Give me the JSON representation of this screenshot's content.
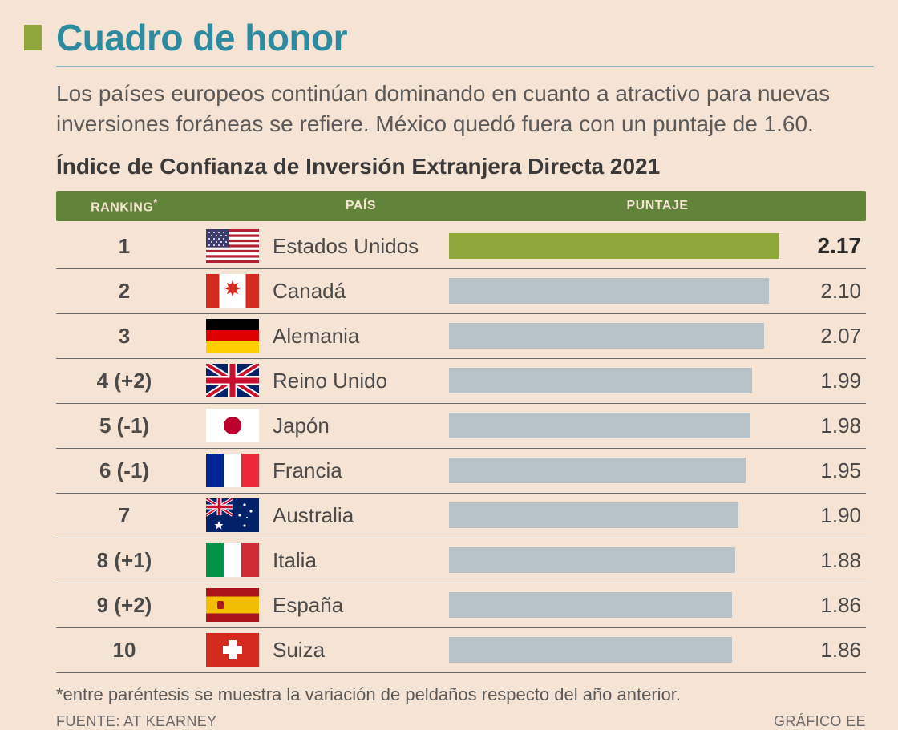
{
  "accent_square_color": "#8fa63a",
  "title": "Cuadro de honor",
  "title_color": "#2e8a9e",
  "underline_color": "#8cb6c0",
  "description": "Los países europeos continúan dominando en cuanto a atractivo para nuevas inversiones foráneas se refiere. México quedó fuera con un puntaje de 1.60.",
  "subtitle": "Índice de Confianza de Inversión Extranjera Directa 2021",
  "header": {
    "bg": "#62833a",
    "fg": "#f5e3d3",
    "ranking": "RANKING",
    "asterisk": "*",
    "pais": "PAÍS",
    "puntaje": "PUNTAJE"
  },
  "bar": {
    "default_color": "#b7c3c8",
    "highlight_color": "#8fa63a",
    "max_value": 2.17
  },
  "row_border_color": "#6a6a6a",
  "rows": [
    {
      "rank": "1",
      "country": "Estados Unidos",
      "score": "2.17",
      "score_bold": true,
      "flag": "us",
      "highlight": true
    },
    {
      "rank": "2",
      "country": "Canadá",
      "score": "2.10",
      "score_bold": false,
      "flag": "ca",
      "highlight": false
    },
    {
      "rank": "3",
      "country": "Alemania",
      "score": "2.07",
      "score_bold": false,
      "flag": "de",
      "highlight": false
    },
    {
      "rank": "4 (+2)",
      "country": "Reino Unido",
      "score": "1.99",
      "score_bold": false,
      "flag": "gb",
      "highlight": false
    },
    {
      "rank": "5 (-1)",
      "country": "Japón",
      "score": "1.98",
      "score_bold": false,
      "flag": "jp",
      "highlight": false
    },
    {
      "rank": "6 (-1)",
      "country": "Francia",
      "score": "1.95",
      "score_bold": false,
      "flag": "fr",
      "highlight": false
    },
    {
      "rank": "7",
      "country": "Australia",
      "score": "1.90",
      "score_bold": false,
      "flag": "au",
      "highlight": false
    },
    {
      "rank": "8 (+1)",
      "country": "Italia",
      "score": "1.88",
      "score_bold": false,
      "flag": "it",
      "highlight": false
    },
    {
      "rank": "9 (+2)",
      "country": "España",
      "score": "1.86",
      "score_bold": false,
      "flag": "es",
      "highlight": false
    },
    {
      "rank": "10",
      "country": "Suiza",
      "score": "1.86",
      "score_bold": false,
      "flag": "ch",
      "highlight": false
    }
  ],
  "footnote": "*entre paréntesis se muestra la variación de peldaños respecto del año anterior.",
  "source_label": "FUENTE: AT KEARNEY",
  "graphic_label": "GRÁFICO EE",
  "background_color": "#f5e3d3",
  "text_color": "#4a4a4a",
  "fonts": {
    "title_pt": 46,
    "description_pt": 28,
    "subtitle_pt": 28,
    "header_pt": 16,
    "row_pt": 26,
    "footnote_pt": 22,
    "source_pt": 18
  }
}
